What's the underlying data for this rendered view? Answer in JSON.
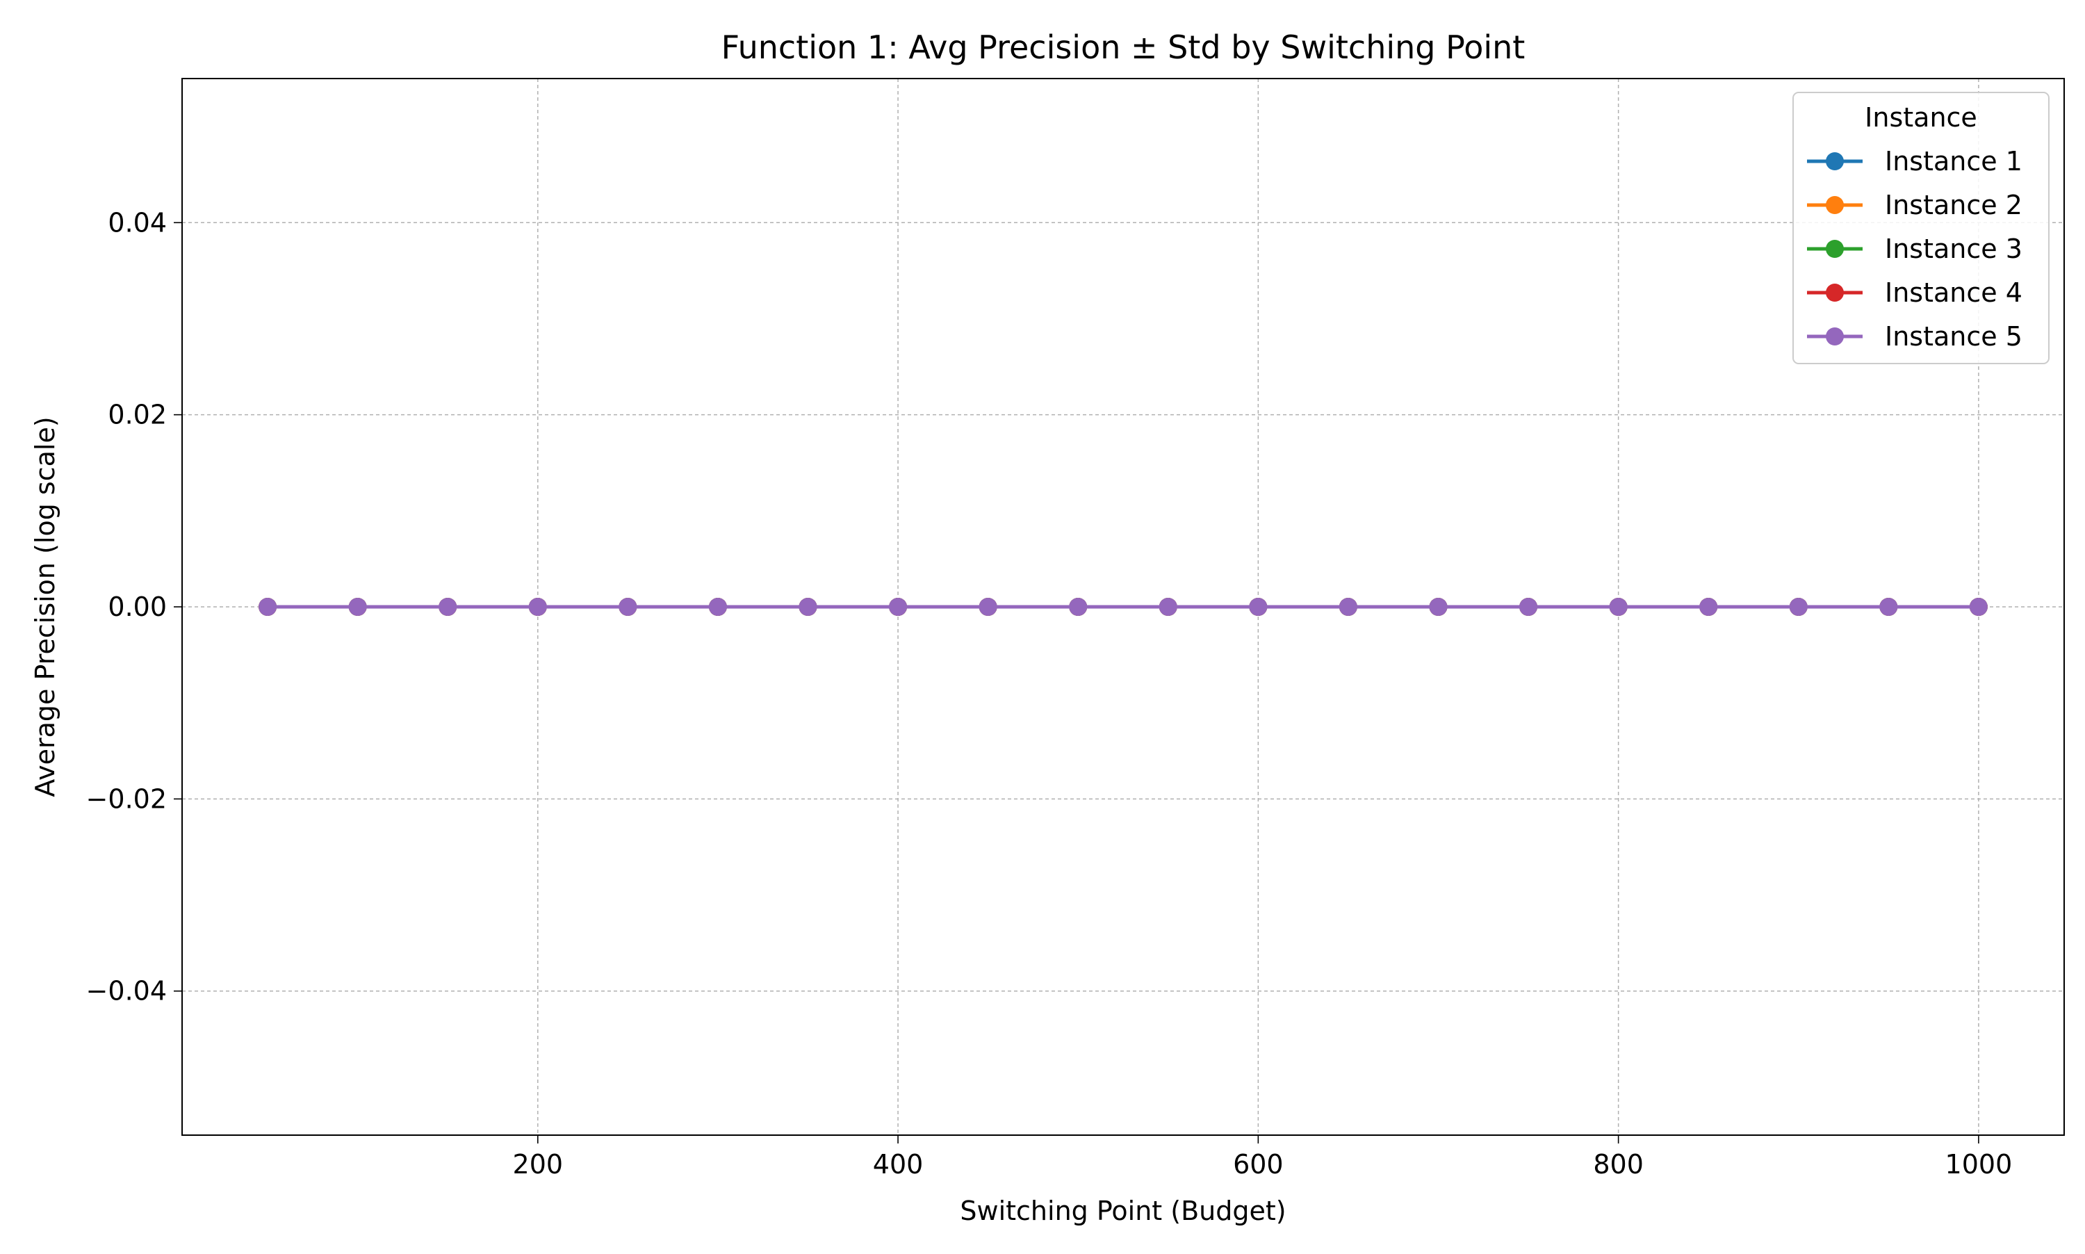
{
  "chart_data": {
    "type": "line",
    "title": "Function 1: Avg Precision ± Std by Switching Point",
    "xlabel": "Switching Point (Budget)",
    "ylabel": "Average Precision (log scale)",
    "xlim": [
      2.5,
      1047.5
    ],
    "ylim": [
      -0.055,
      0.055
    ],
    "x_ticks": [
      200,
      400,
      600,
      800,
      1000
    ],
    "y_ticks": [
      -0.04,
      -0.02,
      0.0,
      0.02,
      0.04
    ],
    "x_tick_labels": [
      "200",
      "400",
      "600",
      "800",
      "1000"
    ],
    "y_tick_labels": [
      "−0.04",
      "−0.02",
      "0.00",
      "0.02",
      "0.04"
    ],
    "grid": true,
    "legend": {
      "title": "Instance",
      "position": "top-right"
    },
    "x": [
      50,
      100,
      150,
      200,
      250,
      300,
      350,
      400,
      450,
      500,
      550,
      600,
      650,
      700,
      750,
      800,
      850,
      900,
      950,
      1000
    ],
    "series": [
      {
        "name": "Instance 1",
        "color": "#1f77b4",
        "values": [
          0,
          0,
          0,
          0,
          0,
          0,
          0,
          0,
          0,
          0,
          0,
          0,
          0,
          0,
          0,
          0,
          0,
          0,
          0,
          0
        ]
      },
      {
        "name": "Instance 2",
        "color": "#ff7f0e",
        "values": [
          0,
          0,
          0,
          0,
          0,
          0,
          0,
          0,
          0,
          0,
          0,
          0,
          0,
          0,
          0,
          0,
          0,
          0,
          0,
          0
        ]
      },
      {
        "name": "Instance 3",
        "color": "#2ca02c",
        "values": [
          0,
          0,
          0,
          0,
          0,
          0,
          0,
          0,
          0,
          0,
          0,
          0,
          0,
          0,
          0,
          0,
          0,
          0,
          0,
          0
        ]
      },
      {
        "name": "Instance 4",
        "color": "#d62728",
        "values": [
          0,
          0,
          0,
          0,
          0,
          0,
          0,
          0,
          0,
          0,
          0,
          0,
          0,
          0,
          0,
          0,
          0,
          0,
          0,
          0
        ]
      },
      {
        "name": "Instance 5",
        "color": "#9467bd",
        "values": [
          0,
          0,
          0,
          0,
          0,
          0,
          0,
          0,
          0,
          0,
          0,
          0,
          0,
          0,
          0,
          0,
          0,
          0,
          0,
          0
        ]
      }
    ]
  }
}
